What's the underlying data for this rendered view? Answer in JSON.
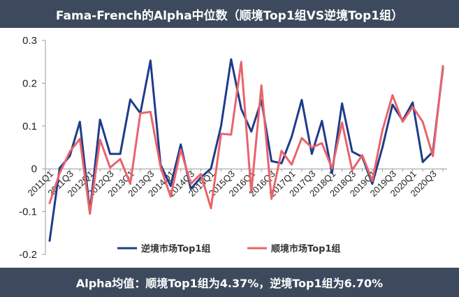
{
  "header": {
    "title": "Fama-French的Alpha中位数（顺境Top1组VS逆境Top1组）"
  },
  "footer": {
    "text": "Alpha均值：顺境Top1组为4.37%，逆境Top1组为6.70%"
  },
  "chart_data": {
    "type": "line",
    "title": "Fama-French的Alpha中位数（顺境Top1组VS逆境Top1组）",
    "ylim": [
      -0.2,
      0.3
    ],
    "yticks": [
      "0.3",
      "0.2",
      "0.1",
      "0",
      "-0.1",
      "-0.2"
    ],
    "ytick_values": [
      0.3,
      0.2,
      0.1,
      0,
      -0.1,
      -0.2
    ],
    "x": [
      "2011Q1",
      "2011Q2",
      "2011Q3",
      "2011Q4",
      "2012Q1",
      "2012Q2",
      "2012Q3",
      "2012Q4",
      "2013Q1",
      "2013Q2",
      "2013Q3",
      "2013Q4",
      "2014Q1",
      "2014Q2",
      "2014Q3",
      "2014Q4",
      "2015Q1",
      "2015Q2",
      "2015Q3",
      "2015Q4",
      "2016Q1",
      "2016Q2",
      "2016Q3",
      "2016Q4",
      "2017Q1",
      "2017Q2",
      "2017Q3",
      "2017Q4",
      "2018Q1",
      "2018Q2",
      "2018Q3",
      "2018Q4",
      "2019Q1",
      "2019Q2",
      "2019Q3",
      "2019Q4",
      "2020Q1",
      "2020Q2",
      "2020Q3",
      "2020Q4"
    ],
    "xtick_labels": [
      "2011Q1",
      "2011Q3",
      "2012Q1",
      "2012Q3",
      "2013Q1",
      "2013Q3",
      "2014Q1",
      "2014Q3",
      "2015Q1",
      "2015Q3",
      "2016Q1",
      "2016Q3",
      "2017Q1",
      "2017Q3",
      "2018Q1",
      "2018Q3",
      "2019Q1",
      "2019Q3",
      "2020Q1",
      "2020Q3"
    ],
    "series": [
      {
        "name": "逆境市场Top1组",
        "color": "#1f3c8a",
        "values": [
          -0.168,
          0.002,
          0.03,
          0.11,
          -0.1,
          0.115,
          0.035,
          0.035,
          0.162,
          0.13,
          0.253,
          0.01,
          -0.04,
          0.057,
          -0.047,
          -0.02,
          0.001,
          0.1,
          0.256,
          0.14,
          0.087,
          0.16,
          0.018,
          0.013,
          0.075,
          0.161,
          0.035,
          0.112,
          -0.01,
          0.153,
          0.04,
          0.028,
          -0.035,
          0.05,
          0.15,
          0.113,
          0.155,
          0.016,
          0.04,
          0.235
        ]
      },
      {
        "name": "顺境市场Top1组",
        "color": "#e8646a",
        "values": [
          -0.08,
          -0.01,
          0.04,
          0.07,
          -0.105,
          0.068,
          0.003,
          0.023,
          -0.035,
          0.13,
          0.133,
          0.005,
          -0.065,
          0.045,
          -0.035,
          -0.012,
          -0.092,
          0.082,
          0.08,
          0.25,
          -0.055,
          0.195,
          -0.07,
          0.042,
          0.01,
          0.072,
          0.05,
          0.06,
          0.001,
          0.108,
          -0.003,
          0.032,
          -0.028,
          0.09,
          0.172,
          0.11,
          0.145,
          0.11,
          0.03,
          0.24
        ]
      }
    ],
    "legend_position": "bottom",
    "grid": false
  }
}
